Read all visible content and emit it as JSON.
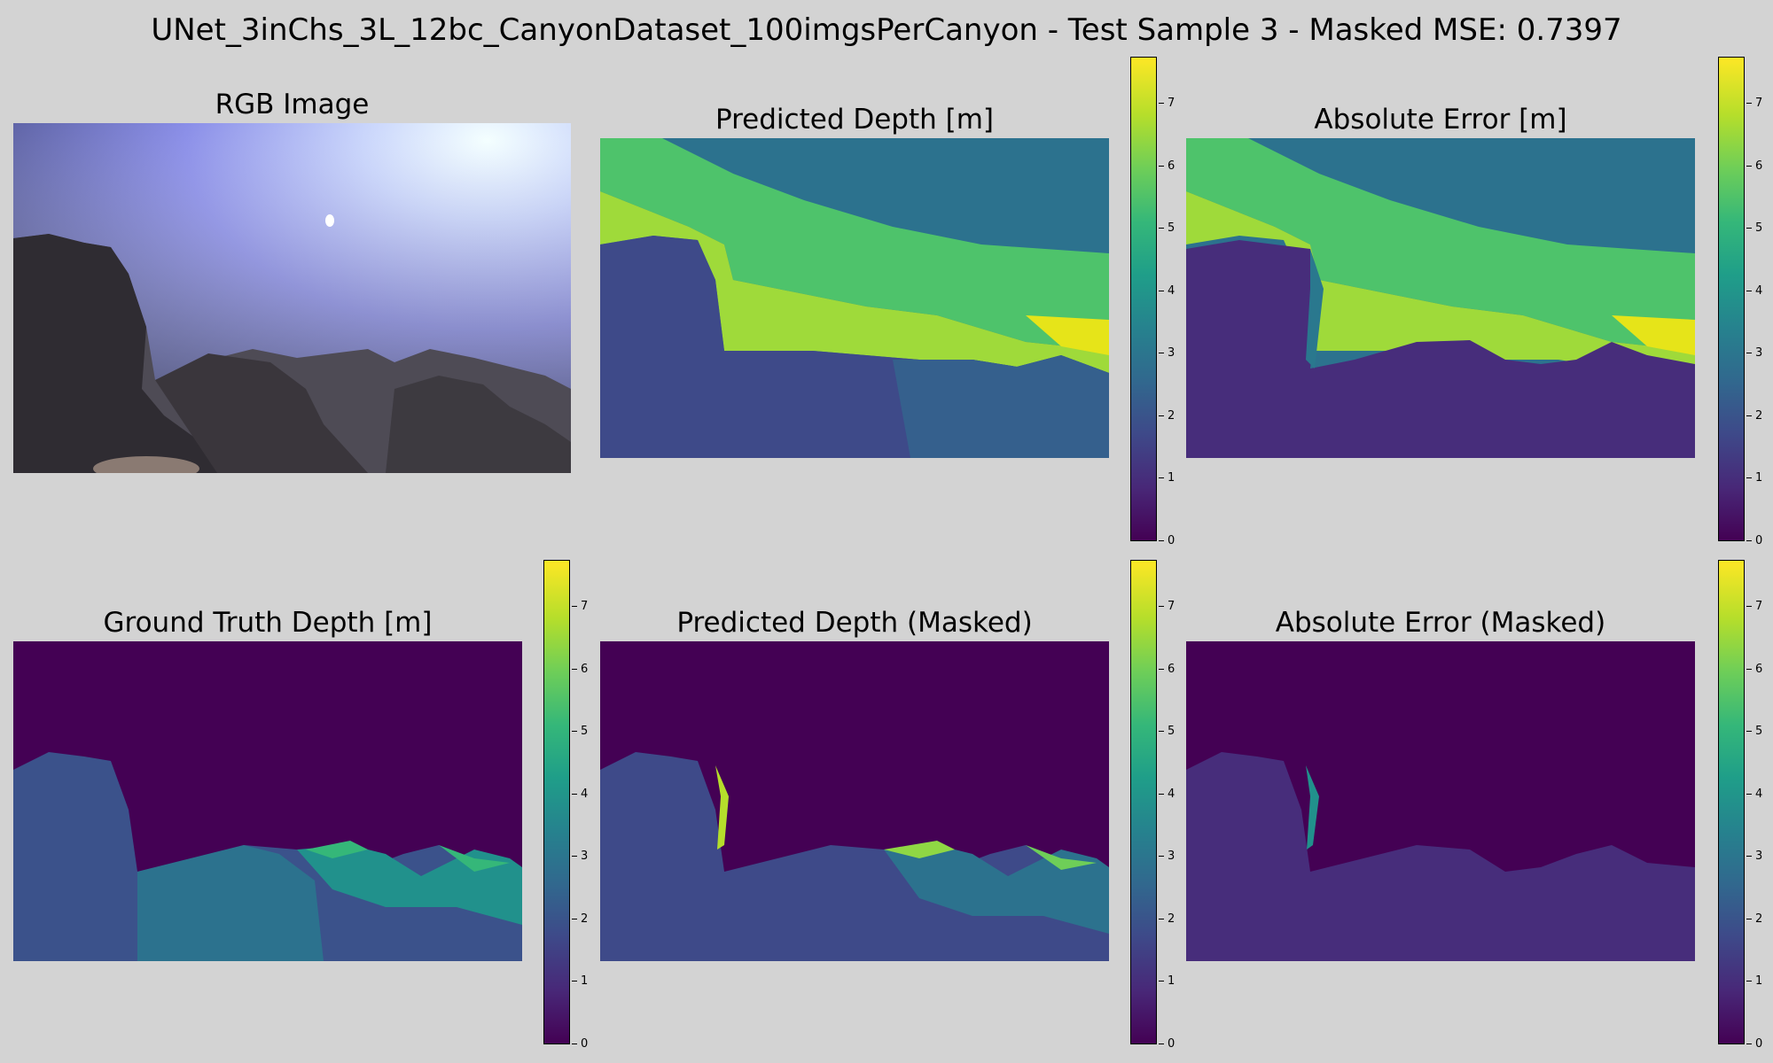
{
  "suptitle": "UNet_3inChs_3L_12bc_CanyonDataset_100imgsPerCanyon - Test Sample 3 - Masked MSE: 0.7397",
  "panels": {
    "rgb": {
      "title": "RGB Image"
    },
    "pred": {
      "title": "Predicted Depth [m]"
    },
    "err": {
      "title": "Absolute Error [m]"
    },
    "gt": {
      "title": "Ground Truth Depth [m]"
    },
    "pred_masked": {
      "title": "Predicted Depth (Masked)"
    },
    "err_masked": {
      "title": "Absolute Error (Masked)"
    }
  },
  "colorbar": {
    "colormap": "viridis",
    "ticks": [
      "0",
      "1",
      "2",
      "3",
      "4",
      "5",
      "6",
      "7"
    ],
    "vmin": 0,
    "vmax": 7.75
  },
  "colors": {
    "background": "#d3d3d3",
    "viridis_low": "#440154",
    "viridis_high": "#fde725"
  }
}
